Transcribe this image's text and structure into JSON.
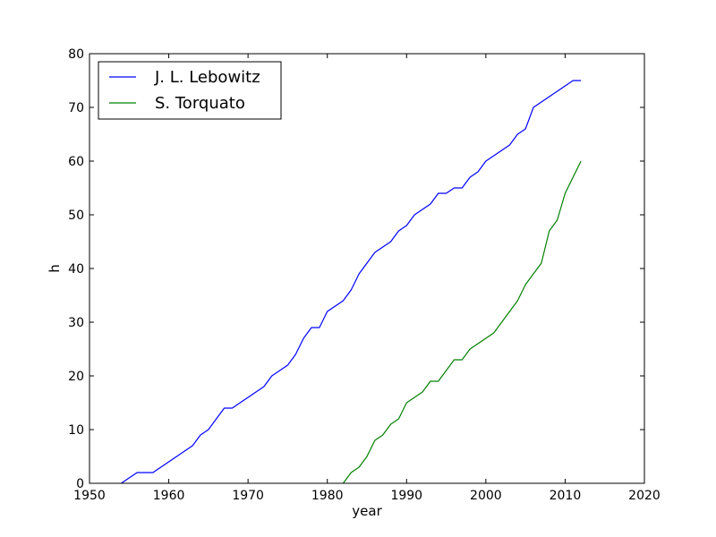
{
  "chart_data": {
    "type": "line",
    "title": "",
    "xlabel": "year",
    "ylabel": "h",
    "xlim": [
      1950,
      2020
    ],
    "ylim": [
      0,
      80
    ],
    "xticks": [
      1950,
      1960,
      1970,
      1980,
      1990,
      2000,
      2010,
      2020
    ],
    "yticks": [
      0,
      10,
      20,
      30,
      40,
      50,
      60,
      70,
      80
    ],
    "grid": false,
    "legend_position": "top-left",
    "series": [
      {
        "name": "J. L. Lebowitz",
        "color": "#0000ff",
        "x": [
          1954,
          1956,
          1958,
          1960,
          1961,
          1963,
          1964,
          1965,
          1966,
          1967,
          1968,
          1970,
          1972,
          1973,
          1975,
          1976,
          1977,
          1978,
          1979,
          1980,
          1982,
          1983,
          1984,
          1986,
          1988,
          1989,
          1990,
          1991,
          1993,
          1994,
          1995,
          1996,
          1997,
          1998,
          1999,
          2000,
          2001,
          2003,
          2004,
          2005,
          2006,
          2008,
          2010,
          2011,
          2012
        ],
        "y": [
          0,
          2,
          2,
          4,
          5,
          7,
          9,
          10,
          12,
          14,
          14,
          16,
          18,
          20,
          22,
          24,
          27,
          29,
          29,
          32,
          34,
          36,
          39,
          43,
          45,
          47,
          48,
          50,
          52,
          54,
          54,
          55,
          55,
          57,
          58,
          60,
          61,
          63,
          65,
          66,
          70,
          72,
          74,
          75,
          75
        ]
      },
      {
        "name": "S. Torquato",
        "color": "#008000",
        "x": [
          1982,
          1983,
          1984,
          1985,
          1986,
          1987,
          1988,
          1989,
          1990,
          1992,
          1993,
          1994,
          1996,
          1997,
          1998,
          2001,
          2004,
          2005,
          2007,
          2008,
          2009,
          2010,
          2012
        ],
        "y": [
          0,
          2,
          3,
          5,
          8,
          9,
          11,
          12,
          15,
          17,
          19,
          19,
          23,
          23,
          25,
          28,
          34,
          37,
          41,
          47,
          49,
          54,
          60
        ]
      }
    ]
  }
}
